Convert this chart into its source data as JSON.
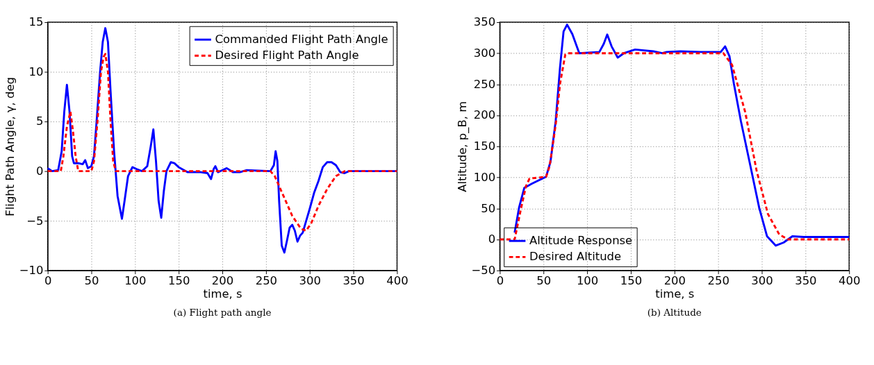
{
  "chart_data": [
    {
      "type": "line",
      "title": "(a) Flight path angle",
      "xlabel": "time, s",
      "ylabel": "Flight Path Angle, γ, deg",
      "xlim": [
        0,
        400
      ],
      "xticks": [
        0,
        50,
        100,
        150,
        200,
        250,
        300,
        350,
        400
      ],
      "ylim": [
        -10,
        15
      ],
      "yticks": [
        -10,
        -5,
        0,
        5,
        10,
        15
      ],
      "grid": true,
      "legend": "top right",
      "marker": "none",
      "series": [
        {
          "name": "Commanded Flight Path Angle",
          "color": "#0000ff",
          "line_style": "solid",
          "x": [
            0,
            5,
            12,
            16,
            19,
            22,
            25,
            28,
            30,
            35,
            40,
            43,
            46,
            50,
            53,
            56,
            60,
            63,
            66,
            69,
            72,
            76,
            80,
            85,
            88,
            92,
            97,
            102,
            108,
            114,
            118,
            121,
            124,
            127,
            130,
            133,
            136,
            141,
            145,
            150,
            160,
            175,
            183,
            187,
            190,
            192,
            195,
            200,
            205,
            212,
            220,
            228,
            255,
            259,
            261,
            263,
            265,
            268,
            271,
            274,
            277,
            280,
            283,
            286,
            289,
            292,
            296,
            300,
            305,
            310,
            315,
            320,
            325,
            330,
            335,
            340,
            345,
            400
          ],
          "values": [
            0.3,
            0,
            0.1,
            2,
            6,
            8.7,
            6,
            1.5,
            0.8,
            0.8,
            0.7,
            1.1,
            0.3,
            0.5,
            1.5,
            5,
            10,
            13,
            14.4,
            13,
            8,
            2,
            -2.5,
            -4.8,
            -3,
            -0.5,
            0.4,
            0.2,
            0,
            0.5,
            2.5,
            4.2,
            1,
            -3,
            -4.7,
            -2,
            0,
            0.9,
            0.8,
            0.4,
            -0.1,
            -0.1,
            -0.2,
            -0.8,
            0.2,
            0.5,
            -0.1,
            0.1,
            0.3,
            -0.1,
            -0.1,
            0.1,
            0,
            0.6,
            2,
            1,
            -3,
            -7.5,
            -8.2,
            -7,
            -5.7,
            -5.4,
            -6,
            -7.1,
            -6.5,
            -6.2,
            -5,
            -3.8,
            -2.2,
            -1,
            0.4,
            0.9,
            0.9,
            0.6,
            -0.1,
            -0.2,
            0,
            0
          ]
        },
        {
          "name": "Desired Flight Path Angle",
          "color": "#ff0000",
          "line_style": "dashed",
          "x": [
            0,
            15,
            18,
            22,
            26,
            29,
            32,
            35,
            50,
            53,
            57,
            61,
            64,
            66,
            69,
            72,
            75,
            78,
            255,
            260,
            270,
            280,
            290,
            296,
            302,
            310,
            320,
            330,
            340,
            400
          ],
          "values": [
            0,
            0,
            1.5,
            4.5,
            6,
            4,
            1.5,
            0,
            0,
            1,
            5,
            10,
            11.5,
            11.8,
            10,
            5,
            1,
            0,
            0,
            -0.5,
            -2.5,
            -4.5,
            -5.8,
            -6,
            -5.2,
            -3.5,
            -1.8,
            -0.5,
            0,
            0
          ]
        }
      ]
    },
    {
      "type": "line",
      "title": "(b) Altitude",
      "xlabel": "time, s",
      "ylabel": "Altitude, p_B, m",
      "xlim": [
        0,
        400
      ],
      "xticks": [
        0,
        50,
        100,
        150,
        200,
        250,
        300,
        350,
        400
      ],
      "ylim": [
        -50,
        350
      ],
      "yticks": [
        -50,
        0,
        50,
        100,
        150,
        200,
        250,
        300,
        350
      ],
      "grid": true,
      "legend": "bottom left",
      "marker": "none",
      "series": [
        {
          "name": "Altitude Response",
          "color": "#0000ff",
          "line_style": "solid",
          "x": [
            17,
            22,
            28,
            37,
            53,
            58,
            64,
            69,
            73,
            77,
            83,
            91,
            104,
            114,
            119,
            123,
            128,
            135,
            142,
            155,
            176,
            186,
            191,
            207,
            230,
            253,
            258,
            263,
            268,
            276,
            287,
            297,
            306,
            316,
            325,
            335,
            348,
            400
          ],
          "values": [
            11,
            51,
            83,
            90,
            101,
            125,
            191,
            278,
            335,
            346,
            331,
            300,
            301,
            302,
            315,
            330,
            311,
            293,
            300,
            306,
            303,
            300,
            302,
            303,
            302,
            302,
            311,
            295,
            251,
            191,
            118,
            51,
            5,
            -10,
            -5,
            5,
            4,
            4
          ]
        },
        {
          "name": "Desired Altitude",
          "color": "#ff0000",
          "line_style": "dashed",
          "x": [
            0,
            17,
            24,
            30,
            34,
            53,
            57,
            64,
            69,
            75,
            78,
            256,
            266,
            281,
            294,
            307,
            320,
            330,
            400
          ],
          "values": [
            0,
            0,
            48,
            86,
            98,
            101,
            118,
            185,
            251,
            298,
            300,
            300,
            281,
            205,
            111,
            41,
            8,
            0,
            0
          ]
        }
      ]
    }
  ]
}
